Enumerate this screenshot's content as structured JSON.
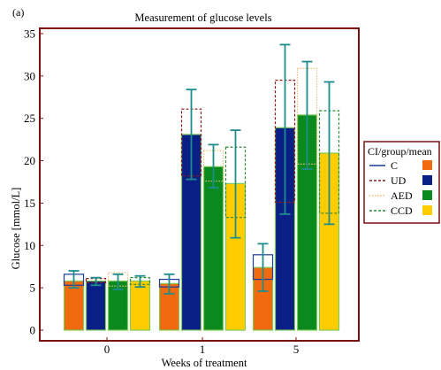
{
  "chart_data": {
    "type": "bar",
    "panel_label": "(a)",
    "title": "Measurement of glucose levels",
    "xlabel": "Weeks of treatment",
    "ylabel": "Glucose [mmol/L]",
    "ylim": [
      0,
      35
    ],
    "yticks": [
      0,
      5,
      10,
      15,
      20,
      25,
      30,
      35
    ],
    "categories": [
      "0",
      "1",
      "5"
    ],
    "legend": {
      "title": "CI/group/mean",
      "placement": "outside-right"
    },
    "series": [
      {
        "name": "C",
        "color": "#f26a10",
        "line_color": "#1a3c9c",
        "line_style": "solid",
        "values": [
          5.8,
          5.5,
          7.4
        ],
        "ci_low": [
          5.3,
          5.1,
          6.0
        ],
        "ci_high": [
          6.6,
          6.0,
          8.9
        ],
        "err_low": [
          5.0,
          4.3,
          4.6
        ],
        "err_high": [
          7.0,
          6.6,
          10.2
        ]
      },
      {
        "name": "UD",
        "color": "#0a1f86",
        "line_color": "#8b1a1a",
        "line_style": "dashed",
        "values": [
          5.8,
          23.1,
          23.9
        ],
        "ci_low": [
          5.6,
          18.2,
          15.1
        ],
        "ci_high": [
          6.1,
          26.1,
          29.5
        ],
        "err_low": [
          5.3,
          17.8,
          13.7
        ],
        "err_high": [
          6.2,
          28.4,
          33.7
        ]
      },
      {
        "name": "AED",
        "color": "#0a8a1e",
        "line_color": "#e3c07a",
        "line_style": "dotted",
        "values": [
          5.8,
          19.3,
          25.4
        ],
        "ci_low": [
          5.2,
          17.6,
          19.6
        ],
        "ci_high": [
          6.8,
          21.2,
          30.9
        ],
        "err_low": [
          4.8,
          16.8,
          19.0
        ],
        "err_high": [
          6.6,
          21.9,
          31.7
        ]
      },
      {
        "name": "CCD",
        "color": "#ffcc00",
        "line_color": "#2e8b3a",
        "line_style": "dashed",
        "values": [
          5.8,
          17.3,
          20.9
        ],
        "ci_low": [
          5.4,
          13.3,
          13.8
        ],
        "ci_high": [
          6.2,
          21.6,
          25.9
        ],
        "err_low": [
          5.1,
          10.9,
          12.5
        ],
        "err_high": [
          6.4,
          23.6,
          29.3
        ]
      }
    ],
    "error_bar_color": "#1f8c8c",
    "frame_color": "#7a1010"
  }
}
